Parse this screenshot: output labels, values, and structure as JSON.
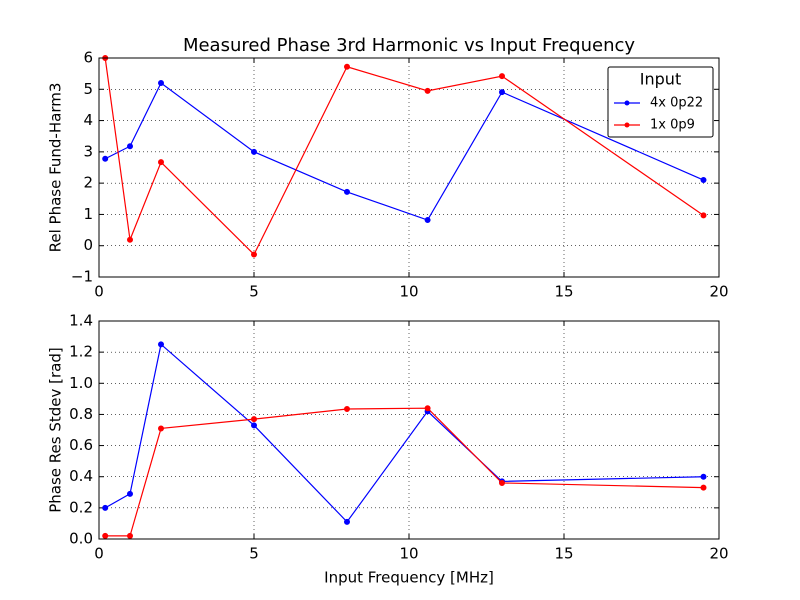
{
  "chart_data": [
    {
      "type": "line",
      "title": "Measured Phase 3rd Harmonic vs Input Frequency",
      "y_label": "Rel Phase Fund-Harm3",
      "x": [
        0.2,
        1,
        2,
        5,
        8,
        10.6,
        13,
        19.5
      ],
      "series": [
        {
          "name": "4x 0p22",
          "color": "#0000ff",
          "values": [
            2.78,
            3.18,
            5.2,
            3.0,
            1.72,
            0.82,
            4.91,
            2.1
          ]
        },
        {
          "name": "1x 0p9",
          "color": "#ff0000",
          "values": [
            6.0,
            0.19,
            2.67,
            -0.28,
            5.72,
            4.95,
            5.42,
            0.97
          ]
        }
      ],
      "xlim": [
        0,
        20
      ],
      "xticks": [
        0,
        5,
        10,
        15,
        20
      ],
      "ylim": [
        -1,
        6
      ],
      "yticks": [
        {
          "value": -1,
          "label": "−1"
        },
        0,
        1,
        2,
        3,
        4,
        5,
        6
      ],
      "grid": true,
      "legend_title": "Input",
      "legend": "upper right"
    },
    {
      "type": "line",
      "x_label": "Input Frequency [MHz]",
      "y_label": "Phase Res Stdev [rad]",
      "x": [
        0.2,
        1,
        2,
        5,
        8,
        10.6,
        13,
        19.5
      ],
      "series": [
        {
          "name": "4x 0p22",
          "color": "#0000ff",
          "values": [
            0.2,
            0.29,
            1.25,
            0.73,
            0.11,
            0.82,
            0.37,
            0.4
          ]
        },
        {
          "name": "1x 0p9",
          "color": "#ff0000",
          "values": [
            0.02,
            0.02,
            0.71,
            0.77,
            0.835,
            0.84,
            0.36,
            0.33
          ]
        }
      ],
      "xlim": [
        0,
        20
      ],
      "xticks": [
        0,
        5,
        10,
        15,
        20
      ],
      "ylim": [
        0,
        1.4
      ],
      "yticks": [
        {
          "value": 0,
          "label": "0.0"
        },
        0.2,
        0.4,
        0.6,
        0.8,
        {
          "value": 1,
          "label": "1.0"
        },
        1.2,
        1.4
      ],
      "grid": true
    }
  ]
}
